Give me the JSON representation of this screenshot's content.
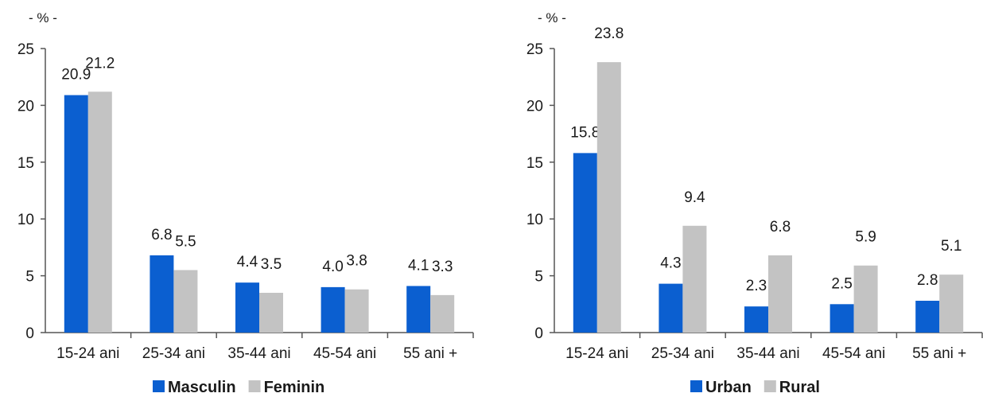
{
  "chart_data": [
    {
      "type": "bar",
      "unit_label": "- % -",
      "categories": [
        "15-24 ani",
        "25-34 ani",
        "35-44 ani",
        "45-54 ani",
        "55 ani +"
      ],
      "series": [
        {
          "name": "Masculin",
          "values": [
            20.9,
            6.8,
            4.4,
            4.0,
            4.1
          ],
          "labels": [
            "20.9",
            "6.8",
            "4.4",
            "4.0",
            "4.1"
          ],
          "color": "#0b5fd0"
        },
        {
          "name": "Feminin",
          "values": [
            21.2,
            5.5,
            3.5,
            3.8,
            3.3
          ],
          "labels": [
            "21.2",
            "5.5",
            "3.5",
            "3.8",
            "3.3"
          ],
          "color": "#c3c3c3"
        }
      ],
      "ylim": [
        0,
        25
      ],
      "yticks": [
        0,
        5,
        10,
        15,
        20,
        25
      ],
      "grid": false,
      "legend": "bottom"
    },
    {
      "type": "bar",
      "unit_label": "- % -",
      "categories": [
        "15-24 ani",
        "25-34 ani",
        "35-44 ani",
        "45-54 ani",
        "55 ani +"
      ],
      "series": [
        {
          "name": "Urban",
          "values": [
            15.8,
            4.3,
            2.3,
            2.5,
            2.8
          ],
          "labels": [
            "15.8",
            "4.3",
            "2.3",
            "2.5",
            "2.8"
          ],
          "color": "#0b5fd0"
        },
        {
          "name": "Rural",
          "values": [
            23.8,
            9.4,
            6.8,
            5.9,
            5.1
          ],
          "labels": [
            "23.8",
            "9.4",
            "6.8",
            "5.9",
            "5.1"
          ],
          "color": "#c3c3c3"
        }
      ],
      "ylim": [
        0,
        25
      ],
      "yticks": [
        0,
        5,
        10,
        15,
        20,
        25
      ],
      "grid": false,
      "legend": "bottom"
    }
  ]
}
